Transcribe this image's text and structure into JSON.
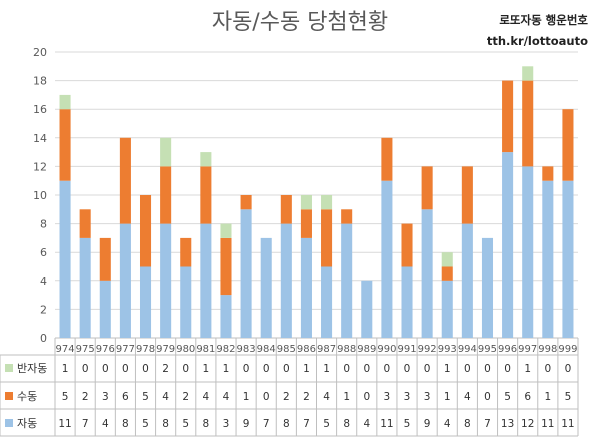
{
  "header": {
    "title": "자동/수동 당첨현황",
    "brand": "로또자동 행운번호",
    "site": "tth.kr/lottoauto"
  },
  "colors": {
    "auto": "#9dc3e6",
    "manual": "#ed7d31",
    "semi": "#c5e0b4",
    "grid": "#d9d9d9",
    "axis": "#bfbfbf"
  },
  "chart_data": {
    "type": "bar",
    "stacked": true,
    "title": "자동/수동 당첨현황",
    "categories": [
      "974",
      "975",
      "976",
      "977",
      "978",
      "979",
      "980",
      "981",
      "982",
      "983",
      "984",
      "985",
      "986",
      "987",
      "988",
      "989",
      "990",
      "991",
      "992",
      "993",
      "994",
      "995",
      "996",
      "997",
      "998",
      "999"
    ],
    "series": [
      {
        "name": "자동",
        "color": "#9dc3e6",
        "values": [
          11,
          7,
          4,
          8,
          5,
          8,
          5,
          8,
          3,
          9,
          7,
          8,
          7,
          5,
          8,
          4,
          11,
          5,
          9,
          4,
          8,
          7,
          13,
          12,
          11,
          11
        ]
      },
      {
        "name": "수동",
        "color": "#ed7d31",
        "values": [
          5,
          2,
          3,
          6,
          5,
          4,
          2,
          4,
          4,
          1,
          0,
          2,
          2,
          4,
          1,
          0,
          3,
          3,
          3,
          1,
          4,
          0,
          5,
          6,
          1,
          5
        ]
      },
      {
        "name": "반자동",
        "color": "#c5e0b4",
        "values": [
          1,
          0,
          0,
          0,
          0,
          2,
          0,
          1,
          1,
          0,
          0,
          0,
          1,
          1,
          0,
          0,
          0,
          0,
          0,
          1,
          0,
          0,
          0,
          1,
          0,
          0
        ]
      }
    ],
    "ylim": [
      0,
      20
    ],
    "yticks": [
      0,
      2,
      4,
      6,
      8,
      10,
      12,
      14,
      16,
      18,
      20
    ],
    "grid": true,
    "legend": "data-table-left"
  }
}
